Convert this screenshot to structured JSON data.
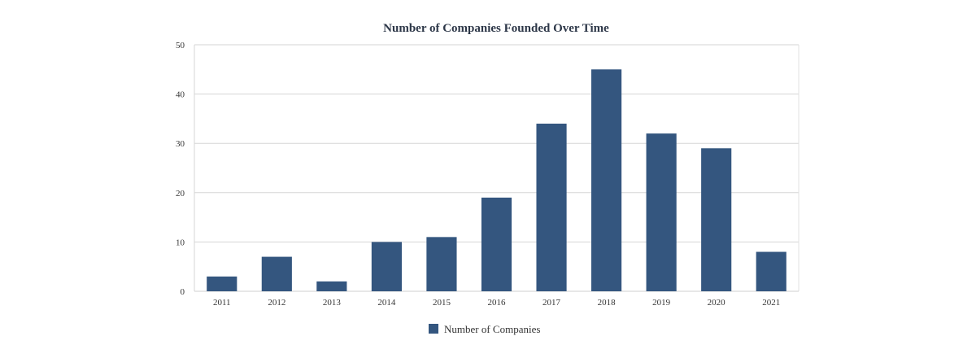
{
  "chart_data": {
    "type": "bar",
    "title": "Number of Companies Founded Over Time",
    "xlabel": "",
    "ylabel": "",
    "categories": [
      "2011",
      "2012",
      "2013",
      "2014",
      "2015",
      "2016",
      "2017",
      "2018",
      "2019",
      "2020",
      "2021"
    ],
    "series": [
      {
        "name": "Number of Companies",
        "values": [
          3,
          7,
          2,
          10,
          11,
          19,
          34,
          45,
          32,
          29,
          8
        ],
        "color": "#34567f"
      }
    ],
    "ylim": [
      0,
      50
    ],
    "yticks": [
      0,
      10,
      20,
      30,
      40,
      50
    ],
    "grid": true,
    "legend_position": "bottom-center"
  }
}
